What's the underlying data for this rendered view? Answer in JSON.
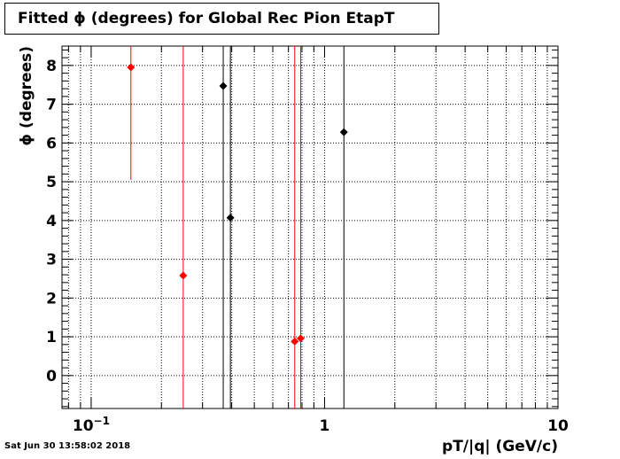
{
  "title": "Fitted ϕ (degrees) for Global Rec Pion EtapT",
  "timestamp": "Sat Jun 30 13:58:02 2018",
  "chart_data": {
    "type": "scatter",
    "title": "Fitted ϕ (degrees) for Global Rec Pion EtapT",
    "xlabel": "pT/|q| (GeV/c)",
    "ylabel": "ϕ (degrees)",
    "xscale": "log",
    "xlim": [
      0.075,
      10
    ],
    "ylim": [
      -0.85,
      8.5
    ],
    "x_major_ticks": [
      {
        "value": 0.1,
        "base": "10",
        "exp": "−1"
      },
      {
        "value": 1,
        "base": "1",
        "exp": ""
      },
      {
        "value": 10,
        "base": "10",
        "exp": ""
      }
    ],
    "y_ticks": [
      0,
      1,
      2,
      3,
      4,
      5,
      6,
      7,
      8
    ],
    "grid": true,
    "series": [
      {
        "color": "#ff0000",
        "points": [
          {
            "x": 0.148,
            "y": 7.95,
            "ylow": 5.05,
            "yhigh": 8.5
          },
          {
            "x": 0.248,
            "y": 2.58,
            "ylow": -0.85,
            "yhigh": 8.5
          },
          {
            "x": 0.745,
            "y": 0.88,
            "ylow": -0.85,
            "yhigh": 8.5
          },
          {
            "x": 0.79,
            "y": 0.96,
            "ylow": -0.85,
            "yhigh": 8.5
          }
        ]
      },
      {
        "color": "#000000",
        "points": [
          {
            "x": 0.368,
            "y": 7.47,
            "ylow": -0.85,
            "yhigh": 8.5
          },
          {
            "x": 0.395,
            "y": 4.07,
            "ylow": -0.85,
            "yhigh": 8.5
          },
          {
            "x": 1.21,
            "y": 6.28,
            "ylow": -0.85,
            "yhigh": 8.5
          }
        ]
      }
    ]
  }
}
